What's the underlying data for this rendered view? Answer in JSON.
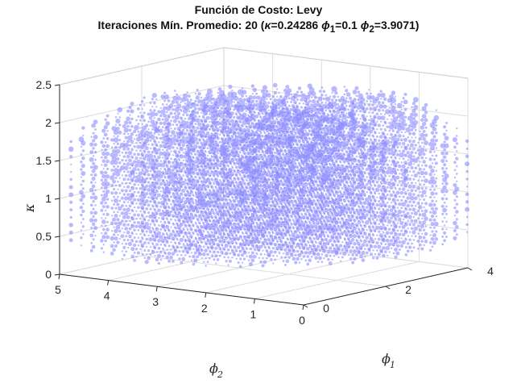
{
  "chart_data": {
    "type": "scatter",
    "title": {
      "line1": "Función de Costo: Levy",
      "line2_prefix": "Iteraciones Mín. Promedio: 20 (",
      "kappa_sym": "κ",
      "kappa_val": "=0.24286 ",
      "phi1_sym": "ϕ",
      "phi1_sub": "1",
      "phi1_val": "=0.1 ",
      "phi2_sym": "ϕ",
      "phi2_sub": "2",
      "phi2_val": "=3.9071)"
    },
    "xlabel": {
      "symbol": "ϕ",
      "sub": "1"
    },
    "ylabel": {
      "symbol": "ϕ",
      "sub": "2"
    },
    "zlabel": "κ",
    "xlim": [
      0,
      4
    ],
    "ylim": [
      0,
      5
    ],
    "zlim": [
      0,
      2.5
    ],
    "xticks": [
      "0",
      "2",
      "4"
    ],
    "yticks": [
      "0",
      "1",
      "2",
      "3",
      "4",
      "5"
    ],
    "zticks": [
      "0",
      "0.5",
      "1",
      "1.5",
      "2",
      "2.5"
    ],
    "grid": true,
    "marker_color": "#8080ff",
    "grid_spec": {
      "phi1": {
        "start": 0.1,
        "step": 0.25,
        "count": 17
      },
      "phi2": {
        "start": 0.1,
        "step": 0.25,
        "count": 20
      },
      "kappa": {
        "start": 0.05,
        "step": 0.1,
        "count": 25
      }
    },
    "region": "points fill a convex body over the grid, sparse near the corner phi1≈0, phi2≈0, kappa≈0; marker size reflects average iterations"
  }
}
